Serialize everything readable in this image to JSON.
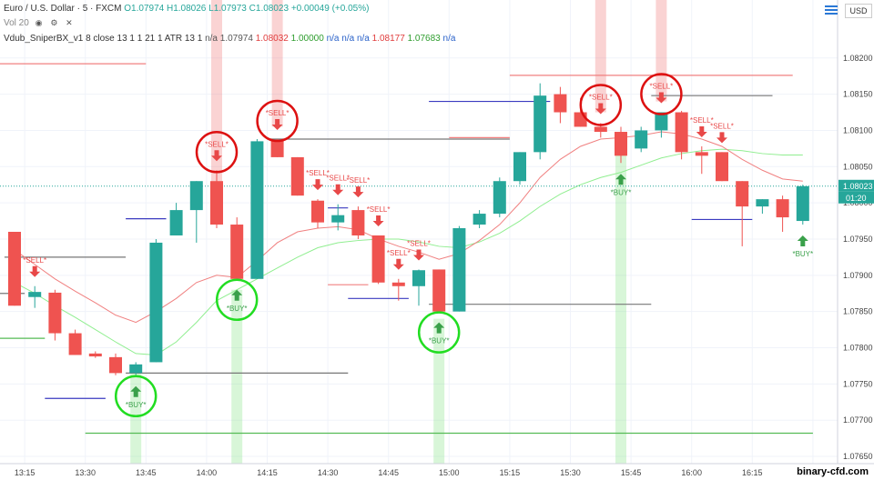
{
  "chart_data": {
    "type": "candlestick",
    "symbol": "Euro / U.S. Dollar",
    "interval": "5",
    "source": "FXCM",
    "ohlc_header": {
      "O": "O1.07974",
      "H": "H1.08026",
      "L": "L1.07973",
      "C": "C1.08023",
      "change": "+0.00049 (+0.05%)"
    },
    "volume_label": "Vol 20",
    "indicator": {
      "label": "Vdub_SniperBX_v1 8 close 13 1 1 21 1 ATR 13 1",
      "values": [
        "n/a",
        "1.07974",
        "1.08032",
        "1.00000",
        "n/a",
        "n/a",
        "n/a",
        "1.08177",
        "1.07683",
        "n/a"
      ],
      "colors": [
        "#555555",
        "#555555",
        "#e03c3c",
        "#2e9d2e",
        "#2a62c9",
        "#2a62c9",
        "#2a62c9",
        "#e03c3c",
        "#2e9d2e",
        "#2a62c9"
      ]
    },
    "currency": "USD",
    "price_axis": {
      "min": 1.0764,
      "max": 1.0828,
      "ticks": [
        "1.08200",
        "1.08150",
        "1.08100",
        "1.08050",
        "1.08000",
        "1.07950",
        "1.07900",
        "1.07850",
        "1.07800",
        "1.07750",
        "1.07700",
        "1.07650"
      ],
      "last_price": "1.08023",
      "countdown": "01:20"
    },
    "time_axis": {
      "ticks": [
        {
          "label": "13:15",
          "bar": 0.5
        },
        {
          "label": "13:30",
          "bar": 3.5
        },
        {
          "label": "13:45",
          "bar": 6.5
        },
        {
          "label": "14:00",
          "bar": 9.5
        },
        {
          "label": "14:15",
          "bar": 12.5
        },
        {
          "label": "14:30",
          "bar": 15.5
        },
        {
          "label": "14:45",
          "bar": 18.5
        },
        {
          "label": "15:00",
          "bar": 21.5
        },
        {
          "label": "15:15",
          "bar": 24.5
        },
        {
          "label": "15:30",
          "bar": 27.5
        },
        {
          "label": "15:45",
          "bar": 30.5
        },
        {
          "label": "16:00",
          "bar": 33.5
        },
        {
          "label": "16:15",
          "bar": 36.5
        },
        {
          "label": "16:30",
          "bar": 39.5
        }
      ]
    },
    "candles": [
      [
        1.0796,
        1.0796,
        1.07858,
        1.07858
      ],
      [
        1.0787,
        1.07885,
        1.07855,
        1.07877
      ],
      [
        1.07876,
        1.0788,
        1.0781,
        1.0782
      ],
      [
        1.0782,
        1.07825,
        1.0779,
        1.0779
      ],
      [
        1.07792,
        1.07795,
        1.07786,
        1.07788
      ],
      [
        1.07787,
        1.07792,
        1.07762,
        1.07765
      ],
      [
        1.07765,
        1.0778,
        1.07762,
        1.07777
      ],
      [
        1.0778,
        1.0795,
        1.0778,
        1.07945
      ],
      [
        1.07955,
        1.08,
        1.07955,
        1.0799
      ],
      [
        1.0799,
        1.0803,
        1.07945,
        1.0803
      ],
      [
        1.0803,
        1.08045,
        1.07965,
        1.0797
      ],
      [
        1.0797,
        1.0798,
        1.07895,
        1.07895
      ],
      [
        1.07895,
        1.08088,
        1.07895,
        1.08085
      ],
      [
        1.08087,
        1.08088,
        1.08063,
        1.08063
      ],
      [
        1.08063,
        1.08063,
        1.0801,
        1.0801
      ],
      [
        1.08003,
        1.08005,
        1.07965,
        1.07973
      ],
      [
        1.07973,
        1.07998,
        1.07962,
        1.07983
      ],
      [
        1.0799,
        1.07995,
        1.0795,
        1.07955
      ],
      [
        1.07955,
        1.07955,
        1.07888,
        1.0789
      ],
      [
        1.0789,
        1.07895,
        1.07865,
        1.07885
      ],
      [
        1.07885,
        1.07908,
        1.07858,
        1.07907
      ],
      [
        1.07908,
        1.07908,
        1.0785,
        1.0785
      ],
      [
        1.0785,
        1.07968,
        1.0785,
        1.07965
      ],
      [
        1.0797,
        1.0799,
        1.07965,
        1.07985
      ],
      [
        1.07985,
        1.08035,
        1.0798,
        1.0803
      ],
      [
        1.0803,
        1.0807,
        1.08025,
        1.0807
      ],
      [
        1.0807,
        1.08165,
        1.0806,
        1.08148
      ],
      [
        1.0815,
        1.0816,
        1.0811,
        1.08125
      ],
      [
        1.08125,
        1.08145,
        1.08105,
        1.08105
      ],
      [
        1.08105,
        1.0811,
        1.0809,
        1.08098
      ],
      [
        1.08098,
        1.08105,
        1.08055,
        1.08065
      ],
      [
        1.08075,
        1.08105,
        1.0807,
        1.081
      ],
      [
        1.081,
        1.08125,
        1.0809,
        1.08125
      ],
      [
        1.08125,
        1.08127,
        1.0806,
        1.0807
      ],
      [
        1.0807,
        1.08078,
        1.0804,
        1.08065
      ],
      [
        1.0807,
        1.0807,
        1.0803,
        1.0803
      ],
      [
        1.0803,
        1.0803,
        1.0794,
        1.07995
      ],
      [
        1.07995,
        1.08005,
        1.07985,
        1.08005
      ],
      [
        1.08005,
        1.0801,
        1.0796,
        1.0798
      ],
      [
        1.07975,
        1.08025,
        1.0797,
        1.08023
      ]
    ],
    "ema": [
      1.07935,
      1.07915,
      1.07895,
      1.07878,
      1.07862,
      1.07845,
      1.07835,
      1.0785,
      1.07868,
      1.0789,
      1.079,
      1.07897,
      1.0792,
      1.07945,
      1.0796,
      1.07965,
      1.07967,
      1.07963,
      1.0795,
      1.0794,
      1.07932,
      1.07922,
      1.0793,
      1.07948,
      1.0797,
      1.08,
      1.08035,
      1.0806,
      1.08078,
      1.08088,
      1.0809,
      1.08093,
      1.08098,
      1.08095,
      1.08088,
      1.08078,
      1.0806,
      1.08045,
      1.08033,
      1.0803
    ],
    "sma": [
      1.0789,
      1.07875,
      1.07858,
      1.07842,
      1.07825,
      1.07808,
      1.07792,
      1.0779,
      1.07808,
      1.07835,
      1.07865,
      1.0788,
      1.07895,
      1.0791,
      1.07925,
      1.07938,
      1.07945,
      1.07948,
      1.0795,
      1.0795,
      1.07946,
      1.0794,
      1.07938,
      1.07946,
      1.07958,
      1.07975,
      1.07995,
      1.08012,
      1.08025,
      1.08035,
      1.08042,
      1.08052,
      1.08062,
      1.08068,
      1.08072,
      1.08074,
      1.08072,
      1.08068,
      1.08066,
      1.08066
    ],
    "signals": [
      {
        "bar": 6,
        "kind": "BUY",
        "label": "*BUY*",
        "circled": true
      },
      {
        "bar": 11,
        "kind": "BUY",
        "label": "*BUY*",
        "circled": true
      },
      {
        "bar": 21,
        "kind": "BUY",
        "label": "*BUY*",
        "circled": true
      },
      {
        "bar": 30,
        "kind": "BUY",
        "label": "*BUY*",
        "circled": false
      },
      {
        "bar": 39,
        "kind": "BUY",
        "label": "*BUY*",
        "circled": false
      },
      {
        "bar": 1,
        "kind": "SELL",
        "label": "*SELL*",
        "circled": false
      },
      {
        "bar": 10,
        "kind": "SELL",
        "label": "*SELL*",
        "circled": true
      },
      {
        "bar": 13,
        "kind": "SELL",
        "label": "*SELL*",
        "circled": true
      },
      {
        "bar": 15,
        "kind": "SELL",
        "label": "*SELL*",
        "circled": false
      },
      {
        "bar": 16,
        "kind": "SELL",
        "label": "*SELL*",
        "circled": false
      },
      {
        "bar": 17,
        "kind": "SELL",
        "label": "*SELL*",
        "circled": false
      },
      {
        "bar": 18,
        "kind": "SELL",
        "label": "*SELL*",
        "circled": false
      },
      {
        "bar": 19,
        "kind": "SELL",
        "label": "*SELL*",
        "circled": false
      },
      {
        "bar": 20,
        "kind": "SELL",
        "label": "*SELL*",
        "circled": false
      },
      {
        "bar": 29,
        "kind": "SELL",
        "label": "*SELL*",
        "circled": true
      },
      {
        "bar": 32,
        "kind": "SELL",
        "label": "*SELL*",
        "circled": true
      },
      {
        "bar": 34,
        "kind": "SELL",
        "label": "*SELL*",
        "circled": false
      },
      {
        "bar": 35,
        "kind": "SELL",
        "label": "*SELL*",
        "circled": false
      }
    ],
    "levels": [
      {
        "price": 1.08192,
        "from": -1,
        "to": 6,
        "color": "#f08080"
      },
      {
        "price": 1.07925,
        "from": 0,
        "to": 5,
        "color": "#777777"
      },
      {
        "price": 1.07875,
        "from": -1,
        "to": 0,
        "color": "#777777"
      },
      {
        "price": 1.07765,
        "from": 6,
        "to": 16,
        "color": "#777777"
      },
      {
        "price": 1.07682,
        "from": 4,
        "to": 39,
        "color": "#55bb55"
      },
      {
        "price": 1.0786,
        "from": 21,
        "to": 31,
        "color": "#777777"
      },
      {
        "price": 1.08088,
        "from": 13,
        "to": 24,
        "color": "#777777"
      },
      {
        "price": 1.0809,
        "from": 22,
        "to": 24,
        "color": "#f08080"
      },
      {
        "price": 1.08176,
        "from": 25,
        "to": 38,
        "color": "#f08080"
      },
      {
        "price": 1.08148,
        "from": 32,
        "to": 37,
        "color": "#777777"
      },
      {
        "price": 1.0814,
        "from": 21,
        "to": 26,
        "color": "#3a3ac0"
      },
      {
        "price": 1.07978,
        "from": 6,
        "to": 7,
        "color": "#3a3ac0"
      },
      {
        "price": 1.0773,
        "from": 2,
        "to": 4,
        "color": "#3a3ac0"
      },
      {
        "price": 1.07868,
        "from": 17,
        "to": 19,
        "color": "#3a3ac0"
      },
      {
        "price": 1.07993,
        "from": 16,
        "to": 16,
        "color": "#3a3ac0"
      },
      {
        "price": 1.07977,
        "from": 34,
        "to": 36,
        "color": "#3a3ac0"
      },
      {
        "price": 1.07813,
        "from": -1,
        "to": 1,
        "color": "#55bb55"
      },
      {
        "price": 1.07887,
        "from": 16,
        "to": 17,
        "color": "#f08080"
      }
    ],
    "highlight_bands": [
      {
        "bar": 6,
        "color": "rgba(100,220,100,0.25)",
        "from": 1.0764,
        "to": 1.0777
      },
      {
        "bar": 11,
        "color": "rgba(100,220,100,0.25)",
        "from": 1.0764,
        "to": 1.0788
      },
      {
        "bar": 21,
        "color": "rgba(100,220,100,0.25)",
        "from": 1.0764,
        "to": 1.0784
      },
      {
        "bar": 30,
        "color": "rgba(100,220,100,0.25)",
        "from": 1.0764,
        "to": 1.0809
      },
      {
        "bar": 10,
        "color": "rgba(240,110,110,0.30)",
        "from": 1.0802,
        "to": 1.0828
      },
      {
        "bar": 13,
        "color": "rgba(240,110,110,0.30)",
        "from": 1.08105,
        "to": 1.0828
      },
      {
        "bar": 29,
        "color": "rgba(240,110,110,0.30)",
        "from": 1.08125,
        "to": 1.0828
      },
      {
        "bar": 32,
        "color": "rgba(240,110,110,0.30)",
        "from": 1.0814,
        "to": 1.0828
      }
    ],
    "colors": {
      "up": "#26a69a",
      "down": "#ef5350",
      "ema": "#f08080",
      "sma": "#90ee90",
      "buy": "#3aa04a",
      "sell": "#e84848",
      "circle_buy": "#22dd22",
      "circle_sell": "#dd1111",
      "last_price_bg": "#26a69a"
    },
    "watermark": "binary-cfd.com"
  }
}
